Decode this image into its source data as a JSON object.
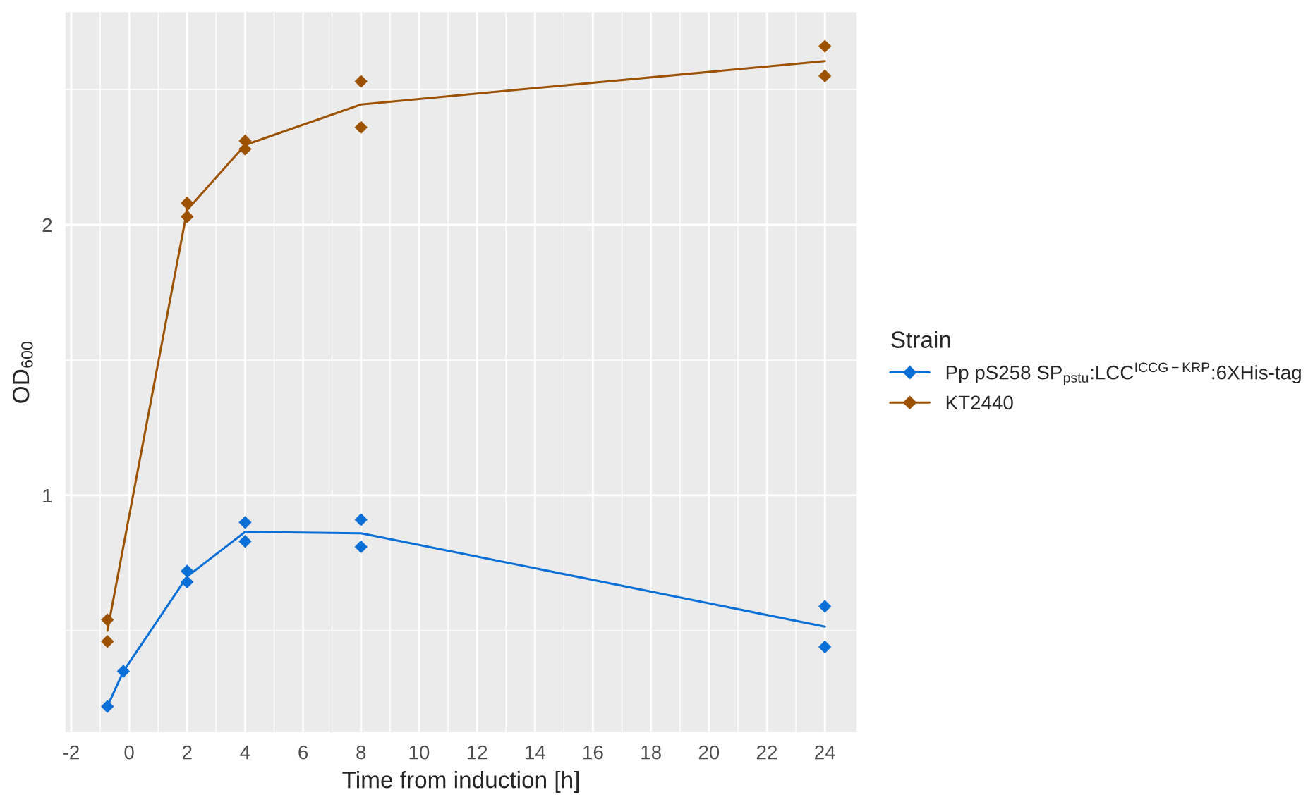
{
  "chart_data": {
    "type": "line",
    "xlabel": "Time from induction [h]",
    "ylabel": "OD$_{600}$",
    "legend_title": "Strain",
    "legend": "right",
    "grid": true,
    "xlim": [
      -2.2,
      25.1
    ],
    "ylim": [
      0.125,
      2.786
    ],
    "xticks": [
      -2,
      0,
      2,
      4,
      6,
      8,
      10,
      12,
      14,
      16,
      18,
      20,
      22,
      24
    ],
    "yticks": [
      1,
      2
    ],
    "series": [
      {
        "color": "#0a6fd6",
        "x": [
          -0.75,
          -0.2,
          2,
          4,
          8,
          24
        ],
        "values": [
          0.22,
          0.35,
          0.7,
          0.865,
          0.86,
          0.515
        ]
      },
      {
        "color": "#9c5200",
        "x": [
          -0.75,
          2,
          4,
          8,
          24
        ],
        "values": [
          0.5,
          2.055,
          2.295,
          2.445,
          2.605
        ]
      },
      {
        "name": "Pp pS258 SP$_{pstu}$:LCC$^{ICCG−KRP}$:6XHis-tag",
        "type": "scatter",
        "marker": "diamond",
        "color": "#0a6fd6",
        "x": [
          -0.75,
          -0.2,
          2,
          2,
          4,
          4,
          8,
          8,
          24,
          24
        ],
        "values": [
          0.22,
          0.35,
          0.72,
          0.68,
          0.9,
          0.83,
          0.91,
          0.81,
          0.59,
          0.44
        ]
      },
      {
        "name": "KT2440",
        "type": "scatter",
        "marker": "diamond",
        "color": "#9c5200",
        "x": [
          -0.75,
          -0.75,
          2,
          2,
          4,
          4,
          8,
          8,
          24,
          24
        ],
        "values": [
          0.54,
          0.46,
          2.08,
          2.03,
          2.31,
          2.28,
          2.53,
          2.36,
          2.66,
          2.55
        ]
      }
    ]
  }
}
